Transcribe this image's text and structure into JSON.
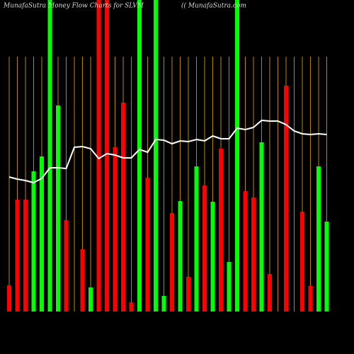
{
  "chart_data": {
    "type": "bar",
    "title": "MunafaSutra  Money Flow  Charts for SLVM",
    "subtitle": "(( MunafaSutra.com",
    "categories": [
      null,
      null,
      null,
      null,
      null,
      null,
      null,
      null,
      null,
      null,
      null,
      null,
      null,
      null,
      null,
      null,
      null,
      null,
      null,
      null,
      null,
      null,
      null,
      null,
      null,
      null,
      null,
      null,
      null,
      null,
      null,
      null,
      null,
      null,
      null,
      null,
      null,
      null,
      null,
      null
    ],
    "values": [
      37,
      158,
      158,
      198,
      219,
      440,
      291,
      129,
      0,
      88,
      34,
      440,
      440,
      232,
      295,
      13,
      440,
      189,
      440,
      22,
      139,
      156,
      49,
      205,
      178,
      155,
      230,
      70,
      440,
      170,
      161,
      239,
      53,
      0,
      319,
      0,
      141,
      36,
      205,
      127
    ],
    "colors": [
      "#ff0000",
      "#ff0000",
      "#ff0000",
      "#00ff00",
      "#00ff00",
      "#00ff00",
      "#00ff00",
      "#ff0000",
      "#ff0000",
      "#ff0000",
      "#00ff00",
      "#ff0000",
      "#ff0000",
      "#ff0000",
      "#ff0000",
      "#ff0000",
      "#00ff00",
      "#ff0000",
      "#00ff00",
      "#00ff00",
      "#ff0000",
      "#00ff00",
      "#ff0000",
      "#00ff00",
      "#ff0000",
      "#00ff00",
      "#ff0000",
      "#00ff00",
      "#00ff00",
      "#ff0000",
      "#ff0000",
      "#00ff00",
      "#ff0000",
      "#00ff00",
      "#ff0000",
      "#ff0000",
      "#ff0000",
      "#ff0000",
      "#00ff00",
      "#00ff00"
    ],
    "line": {
      "color": "#ffffff",
      "values": [
        190,
        187,
        185,
        182,
        188,
        203,
        203,
        202,
        232,
        233,
        230,
        216,
        223,
        221,
        217,
        217,
        229,
        225,
        243,
        242,
        237,
        241,
        240,
        243,
        241,
        248,
        244,
        244,
        259,
        257,
        260,
        270,
        269,
        269,
        264,
        255,
        251,
        250,
        251,
        250
      ]
    },
    "ylim": [
      0,
      440
    ],
    "grid_color": "#b8860b"
  }
}
